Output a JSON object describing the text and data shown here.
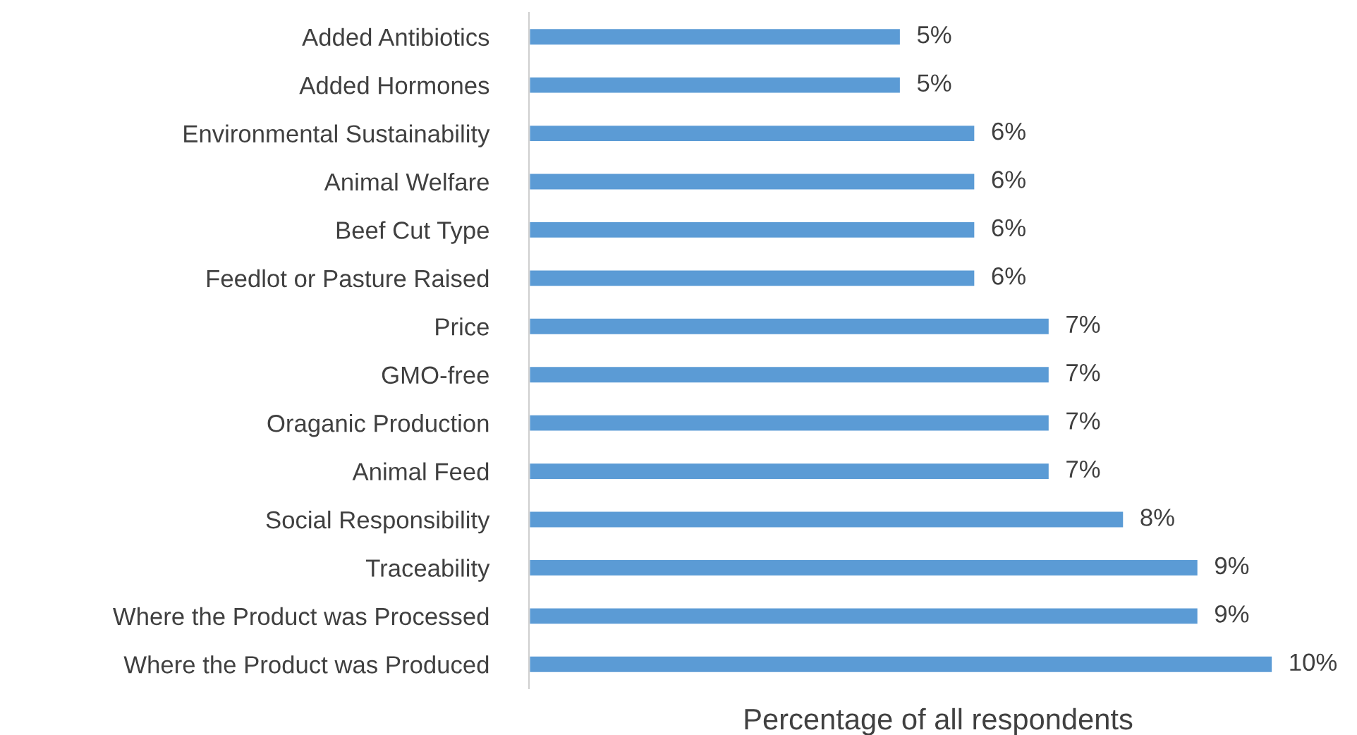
{
  "chart_data": {
    "type": "bar",
    "orientation": "horizontal",
    "xlabel": "Percentage of all respondents",
    "categories": [
      "Added Antibiotics",
      "Added Hormones",
      "Environmental Sustainability",
      "Animal Welfare",
      "Beef Cut Type",
      "Feedlot or Pasture Raised",
      "Price",
      "GMO-free",
      "Oraganic Production",
      "Animal Feed",
      "Social Responsibility",
      "Traceability",
      "Where the Product was Processed",
      "Where the Product was Produced"
    ],
    "values": [
      5,
      5,
      6,
      6,
      6,
      6,
      7,
      7,
      7,
      7,
      8,
      9,
      9,
      10
    ],
    "value_labels": [
      "5%",
      "5%",
      "6%",
      "6%",
      "6%",
      "6%",
      "7%",
      "7%",
      "7%",
      "7%",
      "8%",
      "9%",
      "9%",
      "10%"
    ],
    "color": "#5b9bd5"
  }
}
